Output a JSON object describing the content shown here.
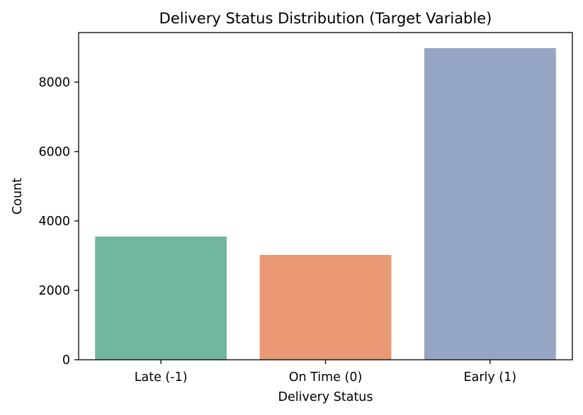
{
  "chart_data": {
    "type": "bar",
    "title": "Delivery Status Distribution (Target Variable)",
    "xlabel": "Delivery Status",
    "ylabel": "Count",
    "categories": [
      "Late (-1)",
      "On Time (0)",
      "Early (1)"
    ],
    "values": [
      3550,
      3020,
      8980
    ],
    "colors": [
      "#73b6a0",
      "#e99873",
      "#95a5c4"
    ],
    "ylim": [
      0,
      9428
    ],
    "yticks": [
      0,
      2000,
      4000,
      6000,
      8000
    ],
    "grid": false,
    "legend": "none"
  }
}
